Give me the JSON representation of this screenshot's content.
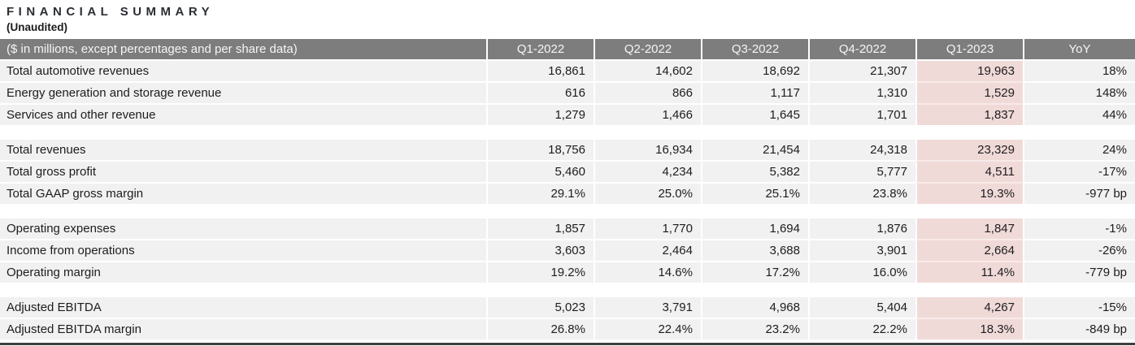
{
  "title": "FINANCIAL SUMMARY",
  "subtitle": "(Unaudited)",
  "colors": {
    "header_bg": "#7d7d7d",
    "row_bg": "#f1f1f1",
    "highlight_bg": "#f0dad8",
    "bottom_border": "#3f3f3f"
  },
  "table": {
    "header": {
      "label": "($ in millions, except percentages and per share data)",
      "columns": [
        "Q1-2022",
        "Q2-2022",
        "Q3-2022",
        "Q4-2022",
        "Q1-2023",
        "YoY"
      ],
      "highlighted_column": "Q1-2023"
    },
    "rows": [
      {
        "label": "Total automotive revenues",
        "values": [
          "16,861",
          "14,602",
          "18,692",
          "21,307",
          "19,963",
          "18%"
        ]
      },
      {
        "label": "Energy generation and storage revenue",
        "values": [
          "616",
          "866",
          "1,117",
          "1,310",
          "1,529",
          "148%"
        ]
      },
      {
        "label": "Services and other revenue",
        "values": [
          "1,279",
          "1,466",
          "1,645",
          "1,701",
          "1,837",
          "44%"
        ]
      },
      {
        "label": "Total revenues",
        "values": [
          "18,756",
          "16,934",
          "21,454",
          "24,318",
          "23,329",
          "24%"
        ]
      },
      {
        "label": "Total gross profit",
        "values": [
          "5,460",
          "4,234",
          "5,382",
          "5,777",
          "4,511",
          "-17%"
        ]
      },
      {
        "label": "Total GAAP gross margin",
        "values": [
          "29.1%",
          "25.0%",
          "25.1%",
          "23.8%",
          "19.3%",
          "-977 bp"
        ]
      },
      {
        "label": "Operating expenses",
        "values": [
          "1,857",
          "1,770",
          "1,694",
          "1,876",
          "1,847",
          "-1%"
        ]
      },
      {
        "label": "Income from operations",
        "values": [
          "3,603",
          "2,464",
          "3,688",
          "3,901",
          "2,664",
          "-26%"
        ]
      },
      {
        "label": "Operating margin",
        "values": [
          "19.2%",
          "14.6%",
          "17.2%",
          "16.0%",
          "11.4%",
          "-779 bp"
        ]
      },
      {
        "label": "Adjusted EBITDA",
        "values": [
          "5,023",
          "3,791",
          "4,968",
          "5,404",
          "4,267",
          "-15%"
        ]
      },
      {
        "label": "Adjusted EBITDA margin",
        "values": [
          "26.8%",
          "22.4%",
          "23.2%",
          "22.2%",
          "18.3%",
          "-849 bp"
        ]
      }
    ]
  }
}
